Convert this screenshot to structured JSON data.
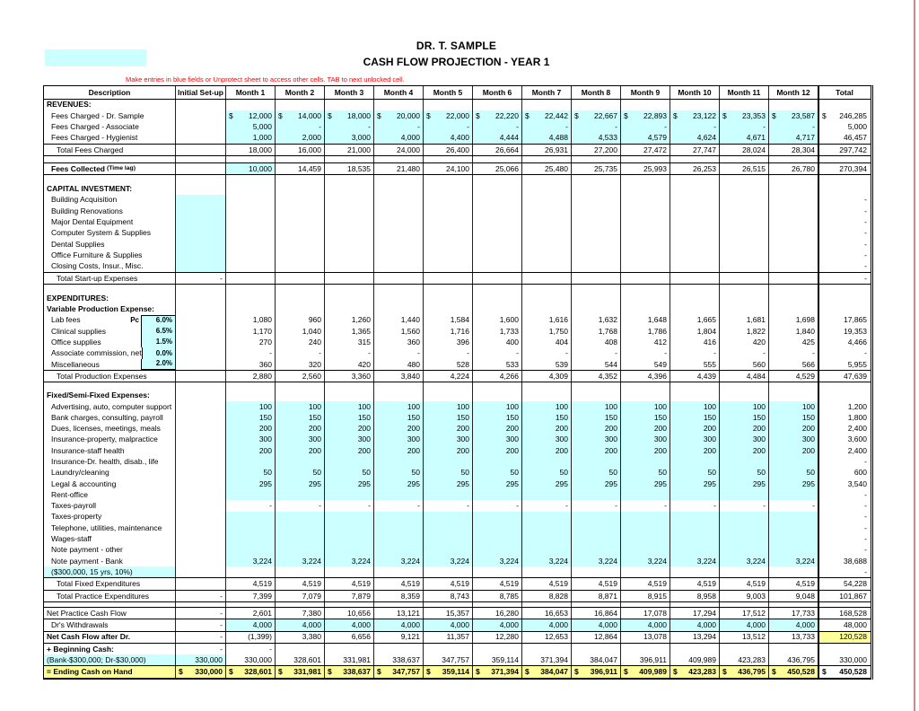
{
  "title": "DR. T. SAMPLE",
  "subtitle": "CASH FLOW PROJECTION - YEAR 1",
  "instruction": "Make entries in blue fields or Unprotect sheet to access other cells. TAB to next unlocked cell.",
  "colors": {
    "blue_input_field": "#CCFFFF",
    "yellow_highlight": "#FFFF99",
    "instruction_text": "#FF0000",
    "grid_line": "#222222",
    "page_margin_line": "#C98A8A"
  },
  "columns": [
    "Description",
    "Initial Set-up",
    "Month 1",
    "Month 2",
    "Month 3",
    "Month 4",
    "Month 5",
    "Month 6",
    "Month 7",
    "Month 8",
    "Month 9",
    "Month 10",
    "Month 11",
    "Month 12",
    "Total"
  ],
  "rows": [
    {
      "label": "REVENUES:",
      "bold": 1,
      "ind": 0
    },
    {
      "label": "Fees Charged - Dr. Sample",
      "ind": 1,
      "blueM": "all",
      "dollar": "m",
      "vals": [
        "12,000",
        "14,000",
        "18,000",
        "20,000",
        "22,000",
        "22,220",
        "22,442",
        "22,667",
        "22,893",
        "23,122",
        "23,353",
        "23,587"
      ],
      "total": "246,285"
    },
    {
      "label": "Fees Charged - Associate",
      "ind": 1,
      "blueM": "all",
      "vals": [
        "5,000",
        "-",
        "-",
        "-",
        "-",
        "-",
        "-",
        "-",
        "-",
        "-",
        "-",
        "-"
      ],
      "total": "5,000"
    },
    {
      "label": "Fees Charged - Hygienist",
      "ind": 1,
      "blueM": "all",
      "vals": [
        "1,000",
        "2,000",
        "3,000",
        "4,000",
        "4,400",
        "4,444",
        "4,488",
        "4,533",
        "4,579",
        "4,624",
        "4,671",
        "4,717"
      ],
      "total": "46,457"
    },
    {
      "label": "Total Fees Charged",
      "ind": 2,
      "bt": 1,
      "bb": 1,
      "vals": [
        "18,000",
        "16,000",
        "21,000",
        "24,000",
        "26,400",
        "26,664",
        "26,931",
        "27,200",
        "27,472",
        "27,747",
        "28,024",
        "28,304"
      ],
      "total": "297,742"
    },
    {
      "sp": 7
    },
    {
      "label": "Fees Collected",
      "label2": "(Time lag)",
      "bold": 1,
      "ind": 1,
      "bt": 1,
      "bb": 1,
      "blueM": "first",
      "vals": [
        "10,000",
        "14,459",
        "18,535",
        "21,480",
        "24,100",
        "25,066",
        "25,480",
        "25,735",
        "25,993",
        "26,253",
        "26,515",
        "26,780"
      ],
      "total": "270,394"
    },
    {
      "sp": 9
    },
    {
      "label": "CAPITAL INVESTMENT:",
      "bold": 1,
      "ind": 0
    },
    {
      "label": "Building Acquisition",
      "ind": 1,
      "blueI": 1,
      "total": "-"
    },
    {
      "label": "Building Renovations",
      "ind": 1,
      "blueI": 1,
      "total": "-"
    },
    {
      "label": "Major Dental Equipment",
      "ind": 1,
      "blueI": 1,
      "total": "-"
    },
    {
      "label": "Computer System & Supplies",
      "ind": 1,
      "blueI": 1,
      "total": "-"
    },
    {
      "label": "Dental Supplies",
      "ind": 1,
      "blueI": 1,
      "total": "-"
    },
    {
      "label": "Office Furniture & Supplies",
      "ind": 1,
      "blueI": 1,
      "total": "-"
    },
    {
      "label": "Closing Costs, Insur., Misc.",
      "ind": 1,
      "blueI": 1,
      "total": "-"
    },
    {
      "label": "Total Start-up Expenses",
      "ind": 2,
      "bt": 1,
      "bb": 1,
      "init": "-",
      "total": "-"
    },
    {
      "sp": 9
    },
    {
      "label": "EXPENDITURES:",
      "bold": 1,
      "ind": 0
    },
    {
      "label": "Variable Production Expense:",
      "bold": 1,
      "ind": 0
    },
    {
      "label": "Lab fees",
      "ind": 1,
      "pre": "Pc",
      "pct": "6.0%",
      "pctT": 1,
      "vals": [
        "1,080",
        "960",
        "1,260",
        "1,440",
        "1,584",
        "1,600",
        "1,616",
        "1,632",
        "1,648",
        "1,665",
        "1,681",
        "1,698"
      ],
      "total": "17,865"
    },
    {
      "label": "Clinical supplies",
      "ind": 1,
      "pct": "6.5%",
      "vals": [
        "1,170",
        "1,040",
        "1,365",
        "1,560",
        "1,716",
        "1,733",
        "1,750",
        "1,768",
        "1,786",
        "1,804",
        "1,822",
        "1,840"
      ],
      "total": "19,353"
    },
    {
      "label": "Office supplies",
      "ind": 1,
      "pct": "1.5%",
      "vals": [
        "270",
        "240",
        "315",
        "360",
        "396",
        "400",
        "404",
        "408",
        "412",
        "416",
        "420",
        "425"
      ],
      "total": "4,466"
    },
    {
      "label": "Associate commission, net",
      "ind": 1,
      "pct": "0.0%",
      "vals": [
        "-",
        "-",
        "-",
        "-",
        "-",
        "-",
        "-",
        "-",
        "-",
        "-",
        "-",
        "-"
      ],
      "total": "-"
    },
    {
      "label": "Miscellaneous",
      "ind": 1,
      "pct": "2.0%",
      "pctB": 1,
      "vals": [
        "360",
        "320",
        "420",
        "480",
        "528",
        "533",
        "539",
        "544",
        "549",
        "555",
        "560",
        "566"
      ],
      "total": "5,955"
    },
    {
      "label": "Total Production Expenses",
      "ind": 2,
      "bt": 1,
      "bb": 1,
      "vals": [
        "2,880",
        "2,560",
        "3,360",
        "3,840",
        "4,224",
        "4,266",
        "4,309",
        "4,352",
        "4,396",
        "4,439",
        "4,484",
        "4,529"
      ],
      "total": "47,639"
    },
    {
      "sp": 8
    },
    {
      "label": "Fixed/Semi-Fixed Expenses:",
      "bold": 1,
      "ind": 0
    },
    {
      "label": "Advertising, auto, computer support",
      "ind": 1,
      "blueM": "all",
      "vals": [
        "100",
        "100",
        "100",
        "100",
        "100",
        "100",
        "100",
        "100",
        "100",
        "100",
        "100",
        "100"
      ],
      "total": "1,200"
    },
    {
      "label": "Bank charges, consulting, payroll",
      "ind": 1,
      "blueM": "all",
      "vals": [
        "150",
        "150",
        "150",
        "150",
        "150",
        "150",
        "150",
        "150",
        "150",
        "150",
        "150",
        "150"
      ],
      "total": "1,800"
    },
    {
      "label": "Dues, licenses, meetings, meals",
      "ind": 1,
      "blueM": "all",
      "vals": [
        "200",
        "200",
        "200",
        "200",
        "200",
        "200",
        "200",
        "200",
        "200",
        "200",
        "200",
        "200"
      ],
      "total": "2,400"
    },
    {
      "label": "Insurance-property, malpractice",
      "ind": 1,
      "blueM": "all",
      "vals": [
        "300",
        "300",
        "300",
        "300",
        "300",
        "300",
        "300",
        "300",
        "300",
        "300",
        "300",
        "300"
      ],
      "total": "3,600"
    },
    {
      "label": "Insurance-staff health",
      "ind": 1,
      "blueM": "all",
      "vals": [
        "200",
        "200",
        "200",
        "200",
        "200",
        "200",
        "200",
        "200",
        "200",
        "200",
        "200",
        "200"
      ],
      "total": "2,400"
    },
    {
      "label": "Insurance-Dr. health, disab., life",
      "ind": 1,
      "blueM": "all",
      "total": "-"
    },
    {
      "label": "Laundry/cleaning",
      "ind": 1,
      "blueM": "all",
      "vals": [
        "50",
        "50",
        "50",
        "50",
        "50",
        "50",
        "50",
        "50",
        "50",
        "50",
        "50",
        "50"
      ],
      "total": "600"
    },
    {
      "label": "Legal & accounting",
      "ind": 1,
      "blueM": "all",
      "vals": [
        "295",
        "295",
        "295",
        "295",
        "295",
        "295",
        "295",
        "295",
        "295",
        "295",
        "295",
        "295"
      ],
      "total": "3,540"
    },
    {
      "label": "Rent-office",
      "ind": 1,
      "blueM": "all",
      "total": "-"
    },
    {
      "label": "Taxes-payroll",
      "ind": 1,
      "vals": [
        "-",
        "-",
        "-",
        "-",
        "-",
        "-",
        "-",
        "-",
        "-",
        "-",
        "-",
        "-"
      ],
      "total": "-"
    },
    {
      "label": "Taxes-property",
      "ind": 1,
      "blueM": "all",
      "total": "-"
    },
    {
      "label": "Telephone, utilities, maintenance",
      "ind": 1,
      "blueM": "all",
      "total": "-"
    },
    {
      "label": "Wages-staff",
      "ind": 1,
      "blueM": "all",
      "total": "-"
    },
    {
      "label": "Note payment - other",
      "ind": 1,
      "blueM": "all",
      "total": "-"
    },
    {
      "label": "Note payment - Bank",
      "ind": 1,
      "blueM": "all",
      "vals": [
        "3,224",
        "3,224",
        "3,224",
        "3,224",
        "3,224",
        "3,224",
        "3,224",
        "3,224",
        "3,224",
        "3,224",
        "3,224",
        "3,224"
      ],
      "total": "38,688"
    },
    {
      "label": "($300,000, 15 yrs, 10%)",
      "ind": 1,
      "blueL": 1,
      "total": "-"
    },
    {
      "label": "Total Fixed Expenditures",
      "ind": 2,
      "bt": 1,
      "bb": 1,
      "vals": [
        "4,519",
        "4,519",
        "4,519",
        "4,519",
        "4,519",
        "4,519",
        "4,519",
        "4,519",
        "4,519",
        "4,519",
        "4,519",
        "4,519"
      ],
      "total": "54,228"
    },
    {
      "label": "Total Practice Expenditures",
      "ind": 2,
      "bb": 1,
      "init": "-",
      "vals": [
        "7,399",
        "7,079",
        "7,879",
        "8,359",
        "8,743",
        "8,785",
        "8,828",
        "8,871",
        "8,915",
        "8,958",
        "9,003",
        "9,048"
      ],
      "total": "101,867"
    },
    {
      "sp": 5
    },
    {
      "label": "Net Practice Cash Flow",
      "ind": 0,
      "bt": 1,
      "init": "-",
      "vals": [
        "2,601",
        "7,380",
        "10,656",
        "13,121",
        "15,357",
        "16,280",
        "16,653",
        "16,864",
        "17,078",
        "17,294",
        "17,512",
        "17,733"
      ],
      "total": "168,528"
    },
    {
      "label": "Dr's Withdrawals",
      "ind": 1,
      "bt": 1,
      "init": "-",
      "blueM": "all",
      "vals": [
        "4,000",
        "4,000",
        "4,000",
        "4,000",
        "4,000",
        "4,000",
        "4,000",
        "4,000",
        "4,000",
        "4,000",
        "4,000",
        "4,000"
      ],
      "total": "48,000"
    },
    {
      "label": "Net Cash Flow after Dr.",
      "bold": 1,
      "ind": 0,
      "bt": 1,
      "bb": 1,
      "init": "-",
      "yellow": "total",
      "vals": [
        "(1,399)",
        "3,380",
        "6,656",
        "9,121",
        "11,357",
        "12,280",
        "12,653",
        "12,864",
        "13,078",
        "13,294",
        "13,512",
        "13,733"
      ],
      "total": "120,528"
    },
    {
      "label": "+ Beginning Cash:",
      "bold": 1,
      "ind": 0,
      "init": "-",
      "vals": [
        "-",
        "",
        "",
        "",
        "",
        "",
        "",
        "",
        "",
        "",
        "",
        ""
      ]
    },
    {
      "label": "(Bank-$300,000; Dr-$30,000)",
      "ind": 0,
      "blueL": 1,
      "blueI": 1,
      "init": "330,000",
      "vals": [
        "330,000",
        "328,601",
        "331,981",
        "338,637",
        "347,757",
        "359,114",
        "371,394",
        "384,047",
        "396,911",
        "409,989",
        "423,283",
        "436,795"
      ],
      "total": "330,000"
    },
    {
      "label": "= Ending Cash on Hand",
      "bold": 1,
      "ind": 0,
      "bt": 1,
      "bb": 2,
      "init": "330,000",
      "dollar": "all",
      "yellow": "row",
      "boldVals": 1,
      "vals": [
        "328,601",
        "331,981",
        "338,637",
        "347,757",
        "359,114",
        "371,394",
        "384,047",
        "396,911",
        "409,989",
        "423,283",
        "436,795",
        "450,528"
      ],
      "total": "450,528"
    }
  ]
}
